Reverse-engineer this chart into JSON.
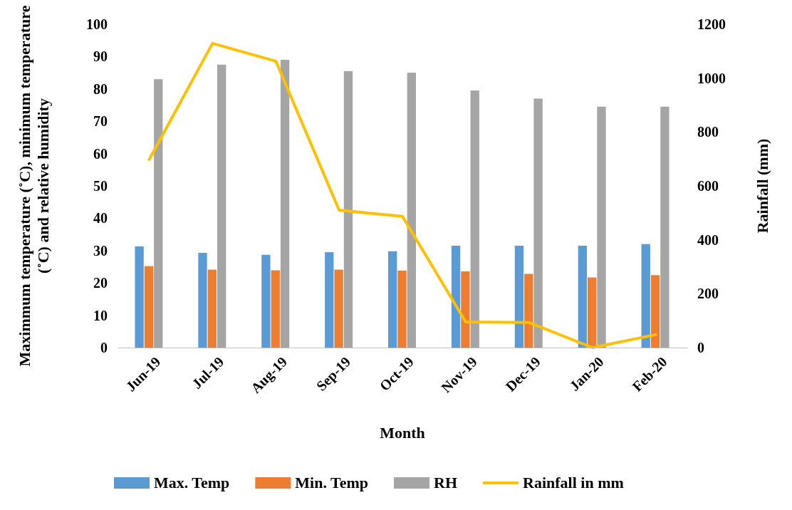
{
  "chart_data": {
    "type": "bar",
    "xlabel": "Month",
    "ylabel": "Maximmum temperature (˚C), minimum temperature (˚C) and relative humidity",
    "y2label": "Rainfall (mm)",
    "categories": [
      "Jun-19",
      "Jul-19",
      "Aug-19",
      "Sep-19",
      "Oct-19",
      "Nov-19",
      "Dec-19",
      "Jan-20",
      "Feb-20"
    ],
    "series": [
      {
        "name": "Max. Temp",
        "color": "#5b9bd5",
        "values": [
          31.3,
          29.3,
          28.7,
          29.5,
          29.8,
          31.5,
          31.5,
          31.5,
          32
        ]
      },
      {
        "name": "Min. Temp",
        "color": "#ed7d31",
        "values": [
          25.2,
          24.1,
          23.9,
          24.1,
          23.8,
          23.6,
          22.8,
          21.7,
          22.4
        ]
      },
      {
        "name": "RH",
        "color": "#a5a5a5",
        "values": [
          83,
          87.5,
          89,
          85.5,
          85,
          79.5,
          77,
          74.5,
          74.5
        ]
      },
      {
        "name": "Rainfall in mm",
        "type": "line",
        "axis": "y2",
        "color": "#ffc000",
        "values": [
          698,
          1129,
          1063,
          510,
          487,
          95,
          93,
          0,
          48
        ]
      }
    ],
    "ylim": [
      0,
      100
    ],
    "yticks": [
      0,
      10,
      20,
      30,
      40,
      50,
      60,
      70,
      80,
      90,
      100
    ],
    "y2lim": [
      0,
      1200
    ],
    "y2ticks": [
      0,
      200,
      400,
      600,
      800,
      1000,
      1200
    ],
    "grid": false,
    "legend": "bottom",
    "marker": "none",
    "line_style": "solid"
  }
}
